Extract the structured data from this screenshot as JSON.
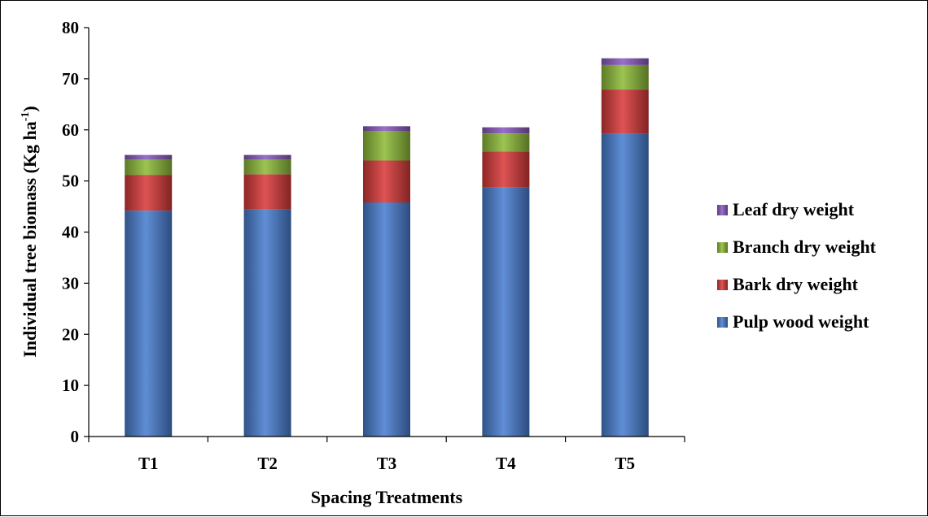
{
  "chart_data": {
    "type": "bar",
    "stacked": true,
    "categories": [
      "T1",
      "T2",
      "T3",
      "T4",
      "T5"
    ],
    "series": [
      {
        "name": "Pulp wood weight",
        "color": "#4a7fd0",
        "values": [
          44.2,
          44.5,
          45.8,
          48.7,
          59.2
        ]
      },
      {
        "name": "Bark dry weight",
        "color": "#d93b3b",
        "values": [
          7.0,
          6.8,
          8.2,
          7.1,
          8.7
        ]
      },
      {
        "name": "Branch dry weight",
        "color": "#8fbc3a",
        "values": [
          3.0,
          2.9,
          5.8,
          3.5,
          4.8
        ]
      },
      {
        "name": "Leaf dry weight",
        "color": "#8b5cc0",
        "values": [
          0.9,
          0.9,
          0.9,
          1.2,
          1.3
        ]
      }
    ],
    "xlabel": "Spacing Treatments",
    "ylabel": {
      "main": "Individual tree biomass (Kg ha",
      "sup": "-1",
      "end": ")"
    },
    "ylim": [
      0,
      80
    ],
    "yticks": [
      0,
      10,
      20,
      30,
      40,
      50,
      60,
      70,
      80
    ],
    "grid": false,
    "legend_placement": "right",
    "legend_order": [
      "Leaf dry weight",
      "Branch dry weight",
      "Bark dry weight",
      "Pulp wood weight"
    ]
  }
}
